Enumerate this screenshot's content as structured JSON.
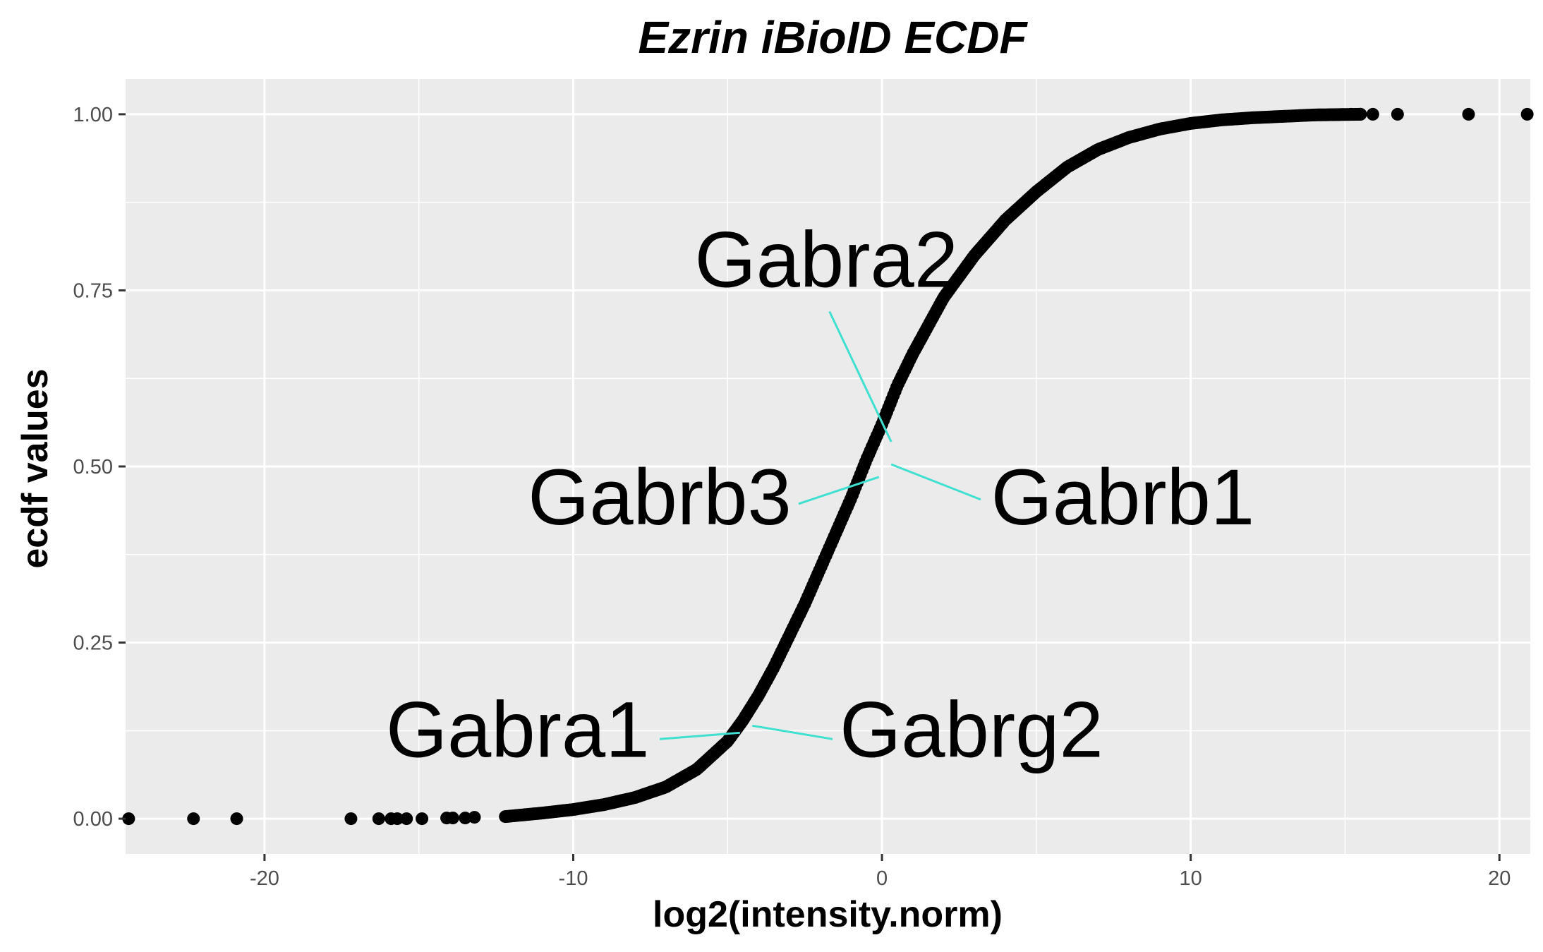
{
  "chart_data": {
    "type": "scatter",
    "title": "Ezrin iBioID ECDF",
    "xlabel": "log2(intensity.norm)",
    "ylabel": "ecdf values",
    "xlim": [
      -24.5,
      21.0
    ],
    "ylim": [
      -0.05,
      1.05
    ],
    "x_ticks": [
      {
        "value": -20,
        "label": "-20"
      },
      {
        "value": -10,
        "label": "-10"
      },
      {
        "value": 0,
        "label": "0"
      },
      {
        "value": 10,
        "label": "10"
      },
      {
        "value": 20,
        "label": "20"
      }
    ],
    "x_minor": [
      -15,
      -5,
      5,
      15
    ],
    "y_ticks": [
      {
        "value": 0.0,
        "label": "0.00"
      },
      {
        "value": 0.25,
        "label": "0.25"
      },
      {
        "value": 0.5,
        "label": "0.50"
      },
      {
        "value": 0.75,
        "label": "0.75"
      },
      {
        "value": 1.0,
        "label": "1.00"
      }
    ],
    "y_minor": [
      0.125,
      0.375,
      0.625,
      0.875
    ],
    "grid": true,
    "panel_background": "#ebebeb",
    "point_color": "#000000",
    "label_line_color": "#40e0d0",
    "curve": {
      "x": [
        -12.2,
        -11,
        -10,
        -9,
        -8,
        -7,
        -6,
        -5.5,
        -5,
        -4.5,
        -4,
        -3.5,
        -3,
        -2.5,
        -2,
        -1.5,
        -1,
        -0.5,
        0,
        0.5,
        1,
        1.5,
        2,
        2.5,
        3,
        3.5,
        4,
        4.5,
        5,
        6,
        7,
        8,
        9,
        10,
        11,
        12,
        13,
        14,
        15.5
      ],
      "y": [
        0.003,
        0.008,
        0.013,
        0.02,
        0.03,
        0.045,
        0.07,
        0.09,
        0.11,
        0.14,
        0.175,
        0.215,
        0.26,
        0.305,
        0.355,
        0.405,
        0.455,
        0.51,
        0.56,
        0.615,
        0.66,
        0.7,
        0.74,
        0.77,
        0.8,
        0.825,
        0.85,
        0.87,
        0.89,
        0.925,
        0.95,
        0.967,
        0.979,
        0.987,
        0.992,
        0.995,
        0.997,
        0.999,
        1.0
      ]
    },
    "low_outliers": {
      "x": [
        -24.4,
        -22.3,
        -20.9,
        -17.2,
        -16.3,
        -15.9,
        -15.7,
        -15.4,
        -14.9,
        -14.1,
        -13.9,
        -13.5,
        -13.2
      ],
      "y": [
        0.0,
        0.0,
        0.0,
        0.0,
        0.0,
        0.0,
        0.0,
        0.0,
        0.0,
        0.001,
        0.001,
        0.001,
        0.002
      ]
    },
    "high_outliers": {
      "x": [
        15.2,
        15.5,
        15.9,
        16.7,
        19.0,
        20.9
      ],
      "y": [
        1.0,
        1.0,
        1.0,
        1.0,
        1.0,
        1.0
      ]
    },
    "annotations": [
      {
        "label": "Gabra2",
        "point": [
          0.3,
          0.535
        ],
        "line_end": [
          -1.7,
          0.72
        ],
        "text": [
          -1.8,
          0.755
        ]
      },
      {
        "label": "Gabrb3",
        "point": [
          -0.1,
          0.485
        ],
        "line_end": [
          -2.7,
          0.447
        ],
        "text": [
          -7.2,
          0.418
        ]
      },
      {
        "label": "Gabrb1",
        "point": [
          0.3,
          0.503
        ],
        "line_end": [
          3.2,
          0.453
        ],
        "text": [
          7.8,
          0.418
        ]
      },
      {
        "label": "Gabra1",
        "point": [
          -4.6,
          0.122
        ],
        "line_end": [
          -7.2,
          0.113
        ],
        "text": [
          -11.8,
          0.088
        ]
      },
      {
        "label": "Gabrg2",
        "point": [
          -4.2,
          0.132
        ],
        "line_end": [
          -1.6,
          0.113
        ],
        "text": [
          2.9,
          0.088
        ]
      }
    ]
  }
}
